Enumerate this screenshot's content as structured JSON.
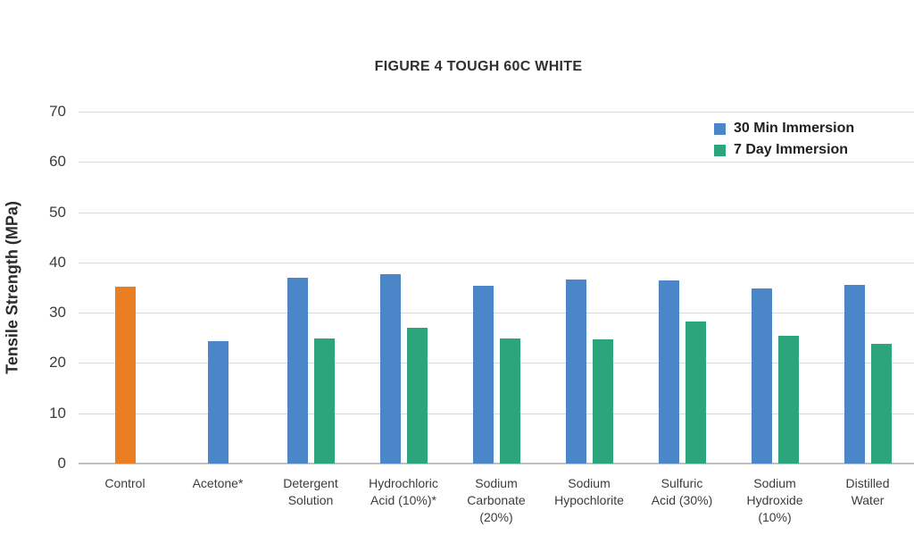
{
  "chart_data": {
    "type": "bar",
    "title": "FIGURE 4 TOUGH 60C WHITE",
    "xlabel": "",
    "ylabel": "Tensile Strength (MPa)",
    "ylim": [
      0,
      70
    ],
    "y_ticks": [
      70,
      60,
      50,
      40,
      30,
      20,
      10,
      0
    ],
    "grid": "horizontal",
    "legend_position": "top-right-inside",
    "categories": [
      "Control",
      "Acetone*",
      "Detergent Solution",
      "Hydrochloric Acid (10%)*",
      "Sodium Carbonate (20%)",
      "Sodium Hypochlorite",
      "Sulfuric Acid (30%)",
      "Sodium Hydroxide (10%)",
      "Distilled Water"
    ],
    "category_label_lines": [
      [
        "Control"
      ],
      [
        "Acetone*"
      ],
      [
        "Detergent",
        "Solution"
      ],
      [
        "Hydrochloric",
        "Acid (10%)*"
      ],
      [
        "Sodium",
        "Carbonate",
        "(20%)"
      ],
      [
        "Sodium",
        "Hypochlorite"
      ],
      [
        "Sulfuric",
        "Acid (30%)"
      ],
      [
        "Sodium",
        "Hydroxide",
        "(10%)"
      ],
      [
        "Distilled",
        "Water"
      ]
    ],
    "series": [
      {
        "name": "30 Min Immersion",
        "color": "#4A86C8",
        "values": [
          35.2,
          24.3,
          36.9,
          37.6,
          35.4,
          36.6,
          36.5,
          34.9,
          35.5
        ]
      },
      {
        "name": "7 Day Immersion",
        "color": "#2CA47C",
        "values": [
          null,
          null,
          24.9,
          27.0,
          24.8,
          24.7,
          28.3,
          25.5,
          23.9
        ]
      }
    ],
    "point_colors": [
      {
        "category_index": 0,
        "series_index": 0,
        "color": "#EA7E22"
      }
    ]
  },
  "colors": {
    "background": "#FFFFFF",
    "gridline": "#D8D8D8",
    "axis_baseline": "#BFBFBF",
    "control_bar": "#EA7E22",
    "series_blue": "#4A86C8",
    "series_green": "#2CA47C",
    "title_text": "#303030",
    "tick_text": "#3C3C3C",
    "label_text": "#3C3C3C",
    "legend_text": "#1F1F1F"
  }
}
